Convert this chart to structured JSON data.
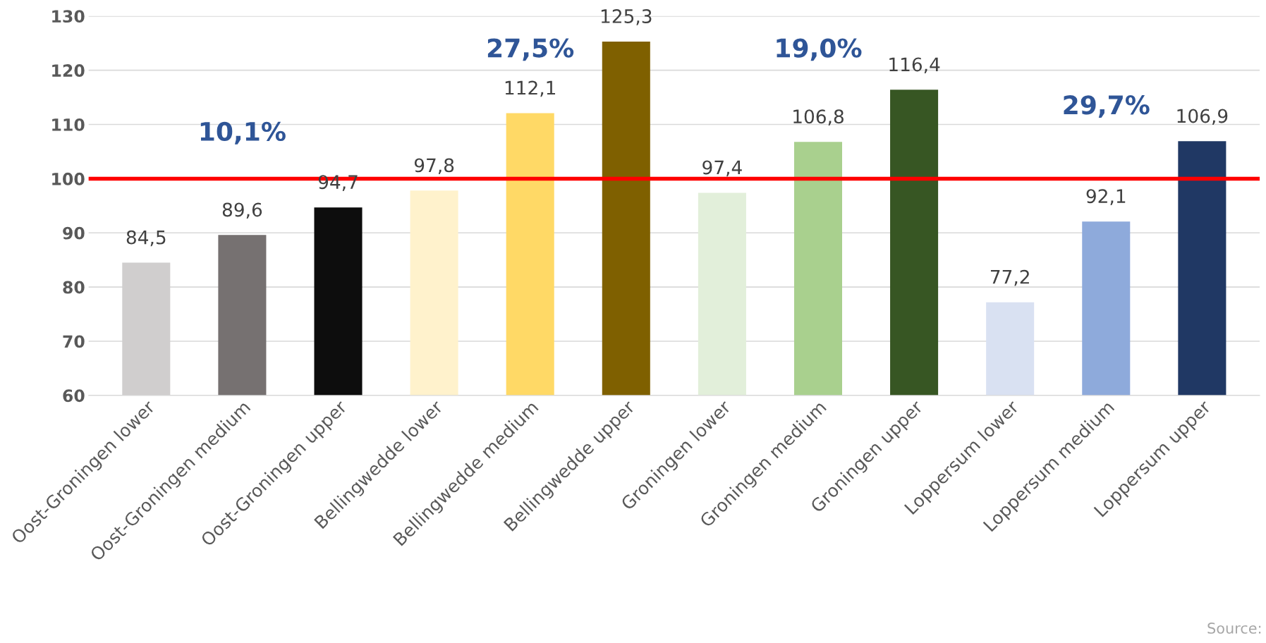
{
  "chart_data": {
    "type": "bar",
    "categories": [
      "Oost-Groningen lower",
      "Oost-Groningen medium",
      "Oost-Groningen upper",
      "Bellingwedde lower",
      "Bellingwedde medium",
      "Bellingwedde upper",
      "Groningen lower",
      "Groningen medium",
      "Groningen upper",
      "Loppersum lower",
      "Loppersum medium",
      "Loppersum upper"
    ],
    "values": [
      84.5,
      89.6,
      94.7,
      97.8,
      112.1,
      125.3,
      97.4,
      106.8,
      116.4,
      77.2,
      92.1,
      106.9
    ],
    "colors": [
      "#d0cece",
      "#767171",
      "#0d0d0d",
      "#fff2cc",
      "#ffd966",
      "#7f6000",
      "#e2efda",
      "#a9d08e",
      "#375623",
      "#d9e1f2",
      "#8eaadb",
      "#203864"
    ],
    "value_labels": [
      "84,5",
      "89,6",
      "94,7",
      "97,8",
      "112,1",
      "125,3",
      "97,4",
      "106,8",
      "116,4",
      "77,2",
      "92,1",
      "106,9"
    ],
    "ylim": [
      60,
      130
    ],
    "yticks": [
      60,
      70,
      80,
      90,
      100,
      110,
      120,
      130
    ],
    "grid": "y",
    "legend": false,
    "ref_lines": [
      {
        "axis": "y",
        "value": 100,
        "color": "#ff0000"
      }
    ],
    "annotations": [
      "10,1%",
      "27,5%",
      "19,0%",
      "29,7%",
      "Source:"
    ]
  }
}
